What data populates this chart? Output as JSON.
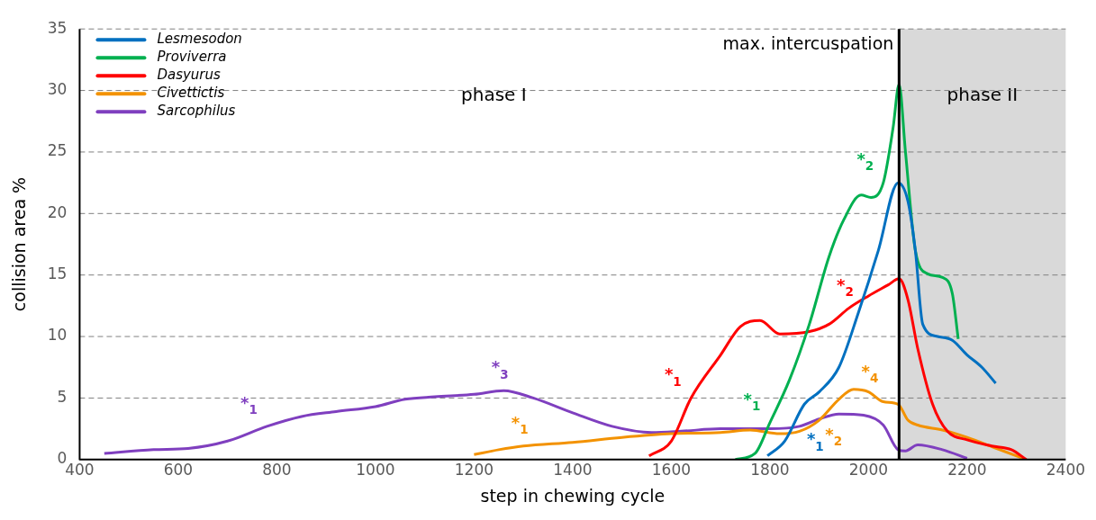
{
  "chart_data": {
    "type": "line",
    "xlabel": "step in chewing cycle",
    "ylabel": "collision area %",
    "xlim": [
      400,
      2400
    ],
    "xticks": [
      400,
      600,
      800,
      1000,
      1200,
      1400,
      1600,
      1800,
      2000,
      2200,
      2400
    ],
    "ylim": [
      0,
      35
    ],
    "yticks": [
      0,
      5,
      10,
      15,
      20,
      25,
      30,
      35
    ],
    "grid": "y",
    "legend": "top left",
    "marker": "none",
    "line_style": "solid",
    "series": [
      {
        "name": "Lesmesodon",
        "color": "#0070c0",
        "x": [
          1795,
          1830,
          1870,
          1900,
          1940,
          1980,
          2020,
          2060,
          2080,
          2095,
          2110,
          2140,
          2170,
          2200,
          2230,
          2258
        ],
        "values": [
          0.3,
          1.5,
          4.5,
          5.5,
          7.5,
          12,
          17,
          22.5,
          21,
          17,
          11,
          10,
          9.7,
          8.5,
          7.5,
          6.2
        ]
      },
      {
        "name": "Proviverra",
        "color": "#00b050",
        "x": [
          1730,
          1770,
          1800,
          1840,
          1880,
          1920,
          1950,
          1985,
          2005,
          2030,
          2050,
          2062,
          2075,
          2095,
          2120,
          2150,
          2170,
          2182
        ],
        "values": [
          0,
          0.5,
          3,
          6.5,
          11,
          16.5,
          19.5,
          21.5,
          21.3,
          22.5,
          27,
          30.5,
          25,
          17,
          15.1,
          14.8,
          13.5,
          9.8
        ]
      },
      {
        "name": "Dasyurus",
        "color": "#ff0000",
        "x": [
          1555,
          1600,
          1640,
          1700,
          1740,
          1780,
          1820,
          1880,
          1920,
          1960,
          2000,
          2040,
          2062,
          2080,
          2100,
          2130,
          2160,
          2200,
          2250,
          2290,
          2320
        ],
        "values": [
          0.3,
          1.5,
          5,
          8.5,
          10.8,
          11.3,
          10.2,
          10.4,
          11,
          12.3,
          13.3,
          14.2,
          14.7,
          13,
          9,
          4.5,
          2.3,
          1.6,
          1.1,
          0.8,
          0
        ]
      },
      {
        "name": "Civettictis",
        "color": "#f39200",
        "x": [
          1200,
          1250,
          1300,
          1400,
          1500,
          1600,
          1700,
          1760,
          1820,
          1860,
          1900,
          1940,
          1970,
          2000,
          2030,
          2060,
          2080,
          2100,
          2150,
          2200,
          2260,
          2320
        ],
        "values": [
          0.4,
          0.8,
          1.1,
          1.4,
          1.8,
          2.1,
          2.2,
          2.4,
          2.1,
          2.3,
          3.2,
          4.9,
          5.7,
          5.5,
          4.7,
          4.5,
          3.2,
          2.8,
          2.4,
          1.8,
          0.9,
          0
        ]
      },
      {
        "name": "Sarcophilus",
        "color": "#7f3fbf",
        "x": [
          450,
          550,
          620,
          700,
          780,
          850,
          920,
          1000,
          1060,
          1120,
          1200,
          1260,
          1320,
          1400,
          1480,
          1560,
          1620,
          1700,
          1800,
          1860,
          1900,
          1940,
          1990,
          2030,
          2060,
          2075,
          2100,
          2150,
          2200
        ],
        "values": [
          0.5,
          0.8,
          0.9,
          1.5,
          2.7,
          3.5,
          3.9,
          4.3,
          4.9,
          5.1,
          5.3,
          5.6,
          5,
          3.8,
          2.7,
          2.2,
          2.3,
          2.5,
          2.5,
          2.7,
          3.3,
          3.7,
          3.6,
          2.8,
          0.8,
          0.7,
          1.2,
          0.8,
          0.1
        ]
      }
    ],
    "ref_lines": [
      {
        "axis": "x",
        "value": 2062,
        "label": "max. intercuspation",
        "color": "#000000"
      }
    ],
    "bands": [
      {
        "axis": "x",
        "from": 2062,
        "to": 2400,
        "label": "phase II",
        "color": "#d9d9d9"
      }
    ],
    "annotations": [
      "phase I",
      {
        "text": "*$_{1}$",
        "x": 780,
        "y": 2.7
      },
      {
        "text": "*$_{3}$",
        "x": 1260,
        "y": 5.6
      },
      {
        "text": "*$_{1}$",
        "x": 1300,
        "y": 1.1
      },
      {
        "text": "*$_{2}$",
        "x": 1900,
        "y": 3.2
      },
      {
        "text": "*$_{4}$",
        "x": 1970,
        "y": 5.7
      },
      {
        "text": "*$_{1}$",
        "x": 1640,
        "y": 5
      },
      {
        "text": "*$_{2}$",
        "x": 1960,
        "y": 12.3
      },
      {
        "text": "*$_{1}$",
        "x": 1800,
        "y": 3
      },
      {
        "text": "*$_{2}$",
        "x": 2030,
        "y": 22.5
      },
      {
        "text": "*$_{1}$",
        "x": 1830,
        "y": 1.5
      }
    ]
  }
}
